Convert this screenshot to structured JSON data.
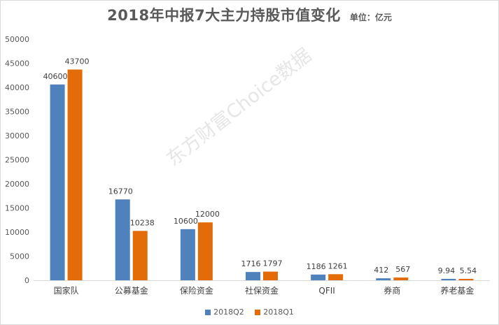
{
  "header": {
    "title": "2018年中报7大主力持股市值变化",
    "unit": "单位：亿元"
  },
  "watermark": "东方财富Choice数据",
  "chart_data": {
    "type": "bar",
    "categories": [
      "国家队",
      "公募基金",
      "保险资金",
      "社保资金",
      "QFII",
      "券商",
      "养老基金"
    ],
    "series": [
      {
        "name": "2018Q2",
        "color": "#4f81bd",
        "values": [
          40600,
          16770,
          10600,
          1716,
          1186,
          412,
          9.94
        ]
      },
      {
        "name": "2018Q1",
        "color": "#e36c09",
        "values": [
          43700,
          10238,
          12000,
          1797,
          1261,
          567,
          5.54
        ]
      }
    ],
    "labels": [
      [
        "40600",
        "16770",
        "10600",
        "1716",
        "1186",
        "412",
        "9.94"
      ],
      [
        "43700",
        "10238",
        "12000",
        "1797",
        "1261",
        "567",
        "5.54"
      ]
    ],
    "yticks": [
      "0",
      "5000",
      "10000",
      "15000",
      "20000",
      "25000",
      "30000",
      "35000",
      "40000",
      "45000",
      "50000"
    ],
    "ylim": [
      0,
      50000
    ],
    "grid": false,
    "legend": "bottom"
  }
}
